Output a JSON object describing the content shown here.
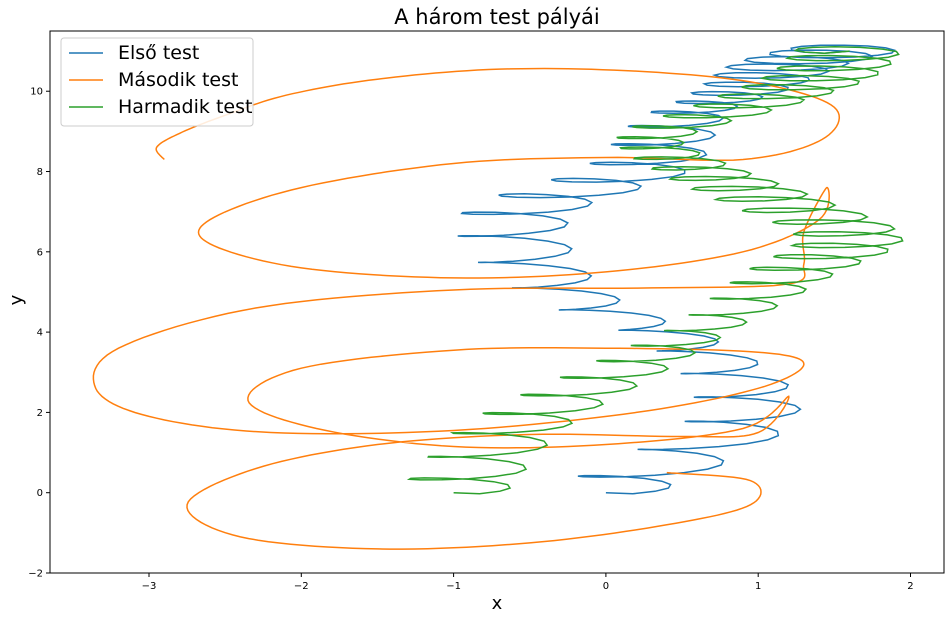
{
  "chart_data": {
    "type": "line",
    "title": "A három test pályái",
    "xlabel": "x",
    "ylabel": "y",
    "xlim": [
      -3.65,
      2.22
    ],
    "ylim": [
      -2.0,
      11.5
    ],
    "xticks": [
      -3,
      -2,
      -1,
      0,
      1,
      2
    ],
    "yticks": [
      -2,
      0,
      2,
      4,
      6,
      8,
      10
    ],
    "grid": false,
    "legend_position": "top-left",
    "series": [
      {
        "name": "Első test",
        "color": "#1f77b4",
        "start": [
          0.0,
          0.0
        ],
        "end": [
          1.6,
          11.0
        ],
        "drift": [
          [
            0.0,
            0.0
          ],
          [
            0.9,
            1.8
          ],
          [
            0.6,
            3.5
          ],
          [
            -0.3,
            5.0
          ],
          [
            -0.6,
            6.8
          ],
          [
            0.2,
            8.0
          ],
          [
            0.5,
            9.3
          ],
          [
            0.9,
            10.0
          ],
          [
            1.2,
            10.6
          ],
          [
            1.6,
            11.0
          ]
        ],
        "loop_radius_x": 0.38,
        "loop_radius_y": 0.26,
        "loops": 26
      },
      {
        "name": "Második test",
        "color": "#ff7f0e",
        "points": [
          [
            -2.9,
            8.3
          ],
          [
            -2.95,
            8.6
          ],
          [
            -2.8,
            8.95
          ],
          [
            -2.5,
            9.4
          ],
          [
            -2.1,
            9.9
          ],
          [
            -1.5,
            10.3
          ],
          [
            -0.7,
            10.55
          ],
          [
            0.2,
            10.5
          ],
          [
            1.0,
            10.2
          ],
          [
            1.5,
            9.6
          ],
          [
            1.42,
            8.8
          ],
          [
            0.9,
            8.3
          ],
          [
            0.0,
            8.35
          ],
          [
            -1.0,
            8.2
          ],
          [
            -2.0,
            7.6
          ],
          [
            -2.6,
            6.8
          ],
          [
            -2.6,
            6.2
          ],
          [
            -2.0,
            5.6
          ],
          [
            -1.0,
            5.35
          ],
          [
            0.0,
            5.5
          ],
          [
            0.9,
            6.0
          ],
          [
            1.4,
            6.8
          ],
          [
            1.45,
            7.6
          ],
          [
            1.3,
            6.5
          ],
          [
            1.3,
            5.7
          ],
          [
            1.2,
            5.2
          ],
          [
            0.3,
            5.1
          ],
          [
            -1.0,
            5.05
          ],
          [
            -2.3,
            4.6
          ],
          [
            -3.2,
            3.6
          ],
          [
            -3.35,
            2.6
          ],
          [
            -3.0,
            1.9
          ],
          [
            -2.2,
            1.5
          ],
          [
            -1.0,
            1.55
          ],
          [
            0.2,
            2.0
          ],
          [
            1.0,
            2.6
          ],
          [
            1.3,
            3.2
          ],
          [
            1.0,
            3.5
          ],
          [
            0.0,
            3.6
          ],
          [
            -1.0,
            3.55
          ],
          [
            -2.0,
            3.1
          ],
          [
            -2.35,
            2.3
          ],
          [
            -1.9,
            1.6
          ],
          [
            -1.0,
            1.15
          ],
          [
            0.0,
            1.2
          ],
          [
            0.9,
            1.6
          ],
          [
            1.2,
            2.4
          ],
          [
            1.0,
            1.5
          ],
          [
            0.5,
            1.4
          ],
          [
            -0.5,
            1.45
          ],
          [
            -1.5,
            1.2
          ],
          [
            -2.3,
            0.6
          ],
          [
            -2.75,
            -0.3
          ],
          [
            -2.4,
            -1.1
          ],
          [
            -1.5,
            -1.4
          ],
          [
            -0.5,
            -1.25
          ],
          [
            0.4,
            -0.8
          ],
          [
            0.95,
            -0.3
          ],
          [
            0.95,
            0.3
          ],
          [
            0.4,
            0.5
          ]
        ]
      },
      {
        "name": "Harmadik test",
        "color": "#2ca02c",
        "start": [
          -1.0,
          0.0
        ],
        "end": [
          1.6,
          11.0
        ],
        "drift": [
          [
            -1.0,
            0.0
          ],
          [
            -0.6,
            1.6
          ],
          [
            0.1,
            3.0
          ],
          [
            0.7,
            4.2
          ],
          [
            1.2,
            5.4
          ],
          [
            1.6,
            6.3
          ],
          [
            1.1,
            7.2
          ],
          [
            0.6,
            8.0
          ],
          [
            0.3,
            8.8
          ],
          [
            0.9,
            9.6
          ],
          [
            1.4,
            10.3
          ],
          [
            1.6,
            11.0
          ]
        ],
        "loop_radius_x": 0.36,
        "loop_radius_y": 0.24,
        "loops": 34
      }
    ]
  }
}
